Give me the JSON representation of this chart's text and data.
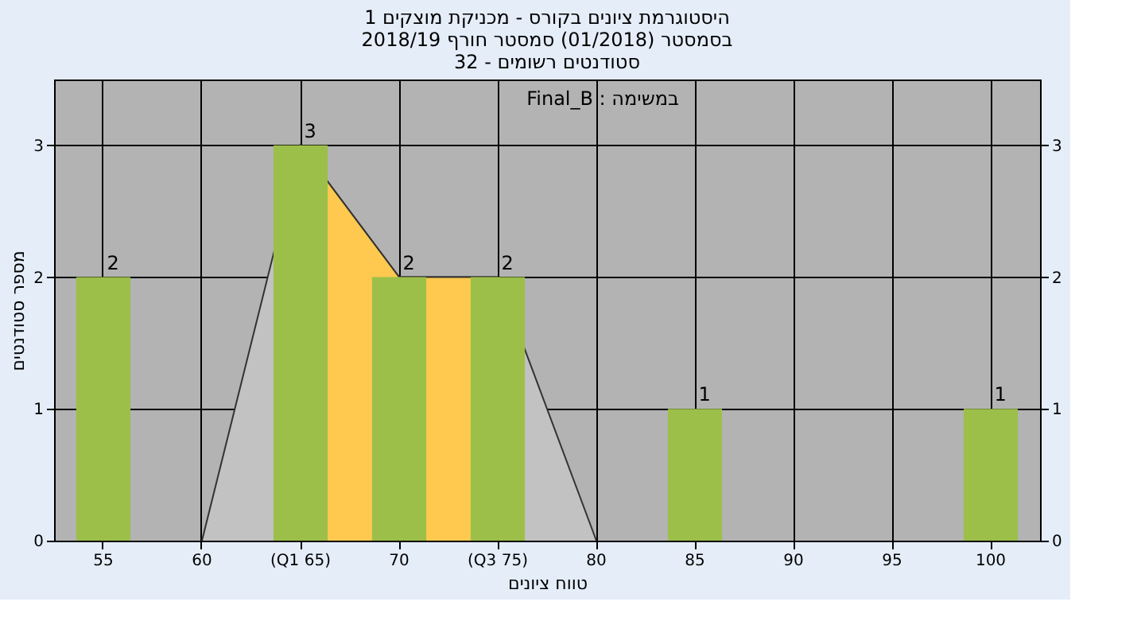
{
  "chart_data": {
    "type": "bar",
    "title": [
      "היסטוגרמת ציונים בקורס - מכניקת מוצקים 1",
      "בסמסטר (01/2018) סמסטר חורף 2018/19",
      "סטודנטים רשומים - 32"
    ],
    "xlabel": "טווח ציונים",
    "ylabel": "מספר סטודנטים",
    "annotations": [
      "Final_B : במשימה"
    ],
    "categories": [
      "55",
      "60",
      "(Q1 65)",
      "70",
      "(Q3 75)",
      "80",
      "85",
      "90",
      "95",
      "100"
    ],
    "series": [
      {
        "type": "area",
        "color": "#c2c2c2",
        "values": [
          null,
          0,
          3,
          2,
          2,
          0,
          null,
          null,
          null,
          null
        ]
      },
      {
        "type": "area",
        "color": "#ffc94f",
        "values": [
          null,
          null,
          3,
          2,
          2,
          null,
          null,
          null,
          null,
          null
        ]
      },
      {
        "color": "#9cbf4a",
        "values": [
          2,
          0,
          3,
          2,
          2,
          0,
          1,
          0,
          0,
          1
        ],
        "value_labels": [
          "2",
          null,
          "3",
          "2",
          "2",
          null,
          "1",
          null,
          null,
          "1"
        ]
      }
    ],
    "ylim": [
      0,
      3.5
    ],
    "yticks": [
      0,
      1,
      2,
      3
    ],
    "y2lim": [
      0,
      3.5
    ],
    "y2ticks": [
      0,
      1,
      2,
      3
    ],
    "grid": true
  }
}
